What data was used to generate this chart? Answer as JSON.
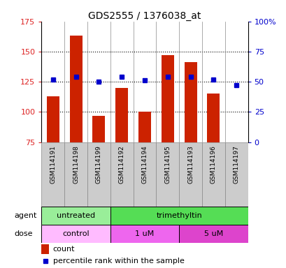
{
  "title": "GDS2555 / 1376038_at",
  "samples": [
    "GSM114191",
    "GSM114198",
    "GSM114199",
    "GSM114192",
    "GSM114194",
    "GSM114195",
    "GSM114193",
    "GSM114196",
    "GSM114197"
  ],
  "bar_values": [
    113,
    163,
    97,
    120,
    100,
    147,
    141,
    115,
    75
  ],
  "percentile_values": [
    52,
    54,
    50,
    54,
    51,
    54,
    54,
    52,
    47
  ],
  "ymin": 75,
  "ymax": 175,
  "y_ticks": [
    75,
    100,
    125,
    150,
    175
  ],
  "y2_ticks": [
    0,
    25,
    50,
    75,
    100
  ],
  "bar_color": "#cc2200",
  "dot_color": "#0000cc",
  "agent_labels": [
    {
      "text": "untreated",
      "start": 0,
      "end": 3,
      "color": "#99ee99"
    },
    {
      "text": "trimethyltin",
      "start": 3,
      "end": 9,
      "color": "#55dd55"
    }
  ],
  "dose_labels": [
    {
      "text": "control",
      "start": 0,
      "end": 3,
      "color": "#ffbbff"
    },
    {
      "text": "1 uM",
      "start": 3,
      "end": 6,
      "color": "#ee66ee"
    },
    {
      "text": "5 uM",
      "start": 6,
      "end": 9,
      "color": "#dd44cc"
    }
  ],
  "agent_row_label": "agent",
  "dose_row_label": "dose",
  "legend_count_label": "count",
  "legend_pct_label": "percentile rank within the sample",
  "tick_bg_color": "#cccccc",
  "plot_bg_color": "#ffffff",
  "bar_width": 0.55
}
